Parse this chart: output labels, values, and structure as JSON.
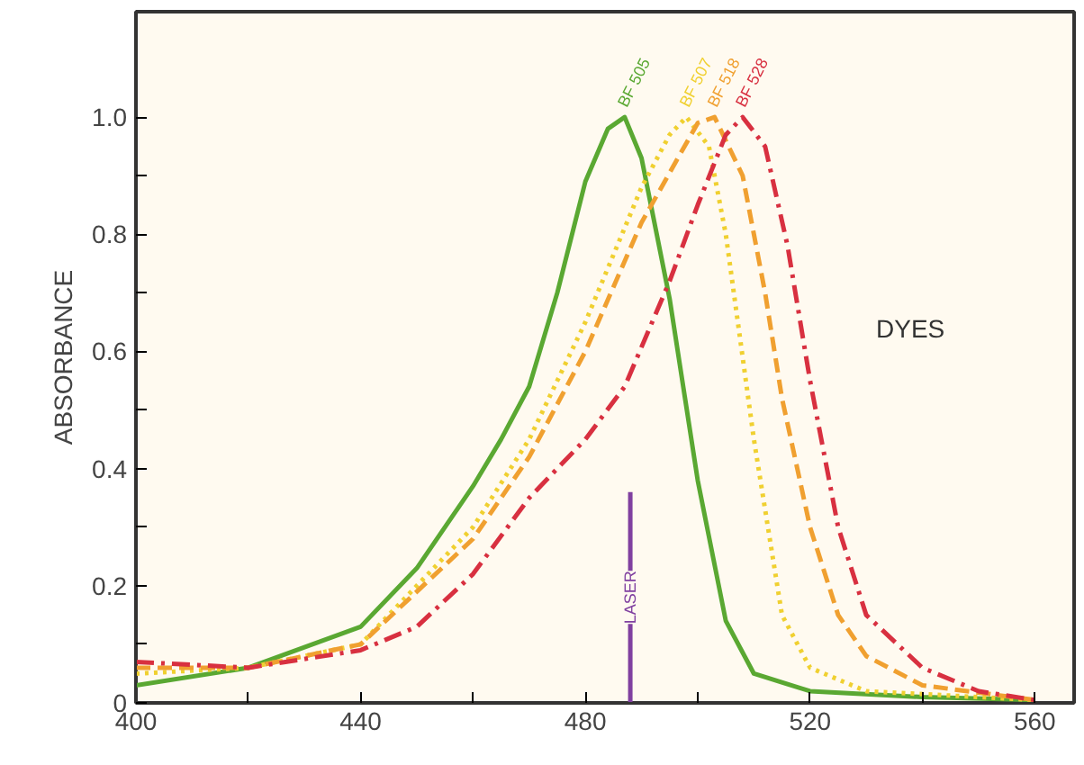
{
  "chart_data": {
    "type": "line",
    "ylabel": "ABSORBANCE",
    "xlim": [
      400,
      567
    ],
    "ylim": [
      0,
      1.18
    ],
    "xticks": [
      400,
      {
        "value": 420,
        "label": null
      },
      440,
      {
        "value": 460,
        "label": null
      },
      480,
      {
        "value": 500,
        "label": null
      },
      520,
      {
        "value": 540,
        "label": null
      },
      560
    ],
    "yticks": [
      0,
      {
        "value": 0.1,
        "label": null
      },
      0.2,
      {
        "value": 0.3,
        "label": null
      },
      0.4,
      {
        "value": 0.5,
        "label": null
      },
      0.6,
      {
        "value": 0.7,
        "label": null
      },
      0.8,
      {
        "value": 0.9,
        "label": null
      },
      {
        "value": 1.0,
        "label": "1.0"
      }
    ],
    "grid": false,
    "marker": "none",
    "series": [
      {
        "name": "BF 505",
        "color": "#5aa832",
        "line_style": "solid",
        "x": [
          400,
          420,
          440,
          450,
          460,
          465,
          470,
          475,
          480,
          484,
          487,
          490,
          495,
          500,
          505,
          510,
          520,
          540,
          560
        ],
        "values": [
          0.03,
          0.06,
          0.13,
          0.23,
          0.37,
          0.45,
          0.54,
          0.7,
          0.89,
          0.98,
          1.0,
          0.93,
          0.69,
          0.38,
          0.14,
          0.05,
          0.02,
          0.01,
          0.005
        ]
      },
      {
        "name": "BF 507",
        "color": "#f0d030",
        "line_style": "dotted",
        "x": [
          400,
          420,
          440,
          460,
          470,
          480,
          490,
          495,
          498,
          502,
          505,
          510,
          515,
          520,
          530,
          560
        ],
        "values": [
          0.05,
          0.06,
          0.1,
          0.3,
          0.45,
          0.65,
          0.88,
          0.97,
          1.0,
          0.95,
          0.8,
          0.45,
          0.15,
          0.06,
          0.02,
          0.005
        ]
      },
      {
        "name": "BF 518",
        "color": "#f0a030",
        "line_style": "dashed",
        "x": [
          400,
          420,
          440,
          460,
          470,
          480,
          490,
          500,
          503,
          508,
          512,
          515,
          520,
          525,
          530,
          540,
          560
        ],
        "values": [
          0.06,
          0.06,
          0.1,
          0.28,
          0.42,
          0.6,
          0.82,
          0.99,
          1.0,
          0.9,
          0.7,
          0.52,
          0.3,
          0.15,
          0.08,
          0.03,
          0.005
        ]
      },
      {
        "name": "BF 528",
        "color": "#d83040",
        "line_style": "dashdot",
        "x": [
          400,
          420,
          440,
          450,
          460,
          470,
          480,
          487,
          495,
          500,
          505,
          508,
          512,
          516,
          520,
          525,
          530,
          540,
          550,
          560
        ],
        "values": [
          0.07,
          0.06,
          0.09,
          0.13,
          0.22,
          0.35,
          0.45,
          0.54,
          0.72,
          0.85,
          0.97,
          1.0,
          0.95,
          0.78,
          0.55,
          0.3,
          0.15,
          0.06,
          0.02,
          0.005
        ]
      },
      {
        "color": "#8040a0",
        "line_style": "solid",
        "x": [
          488,
          488
        ],
        "values": [
          0,
          0.36
        ]
      }
    ],
    "annotations": [
      {
        "text": "LASER",
        "x": 488,
        "y": 0.18
      },
      "DYES"
    ]
  }
}
